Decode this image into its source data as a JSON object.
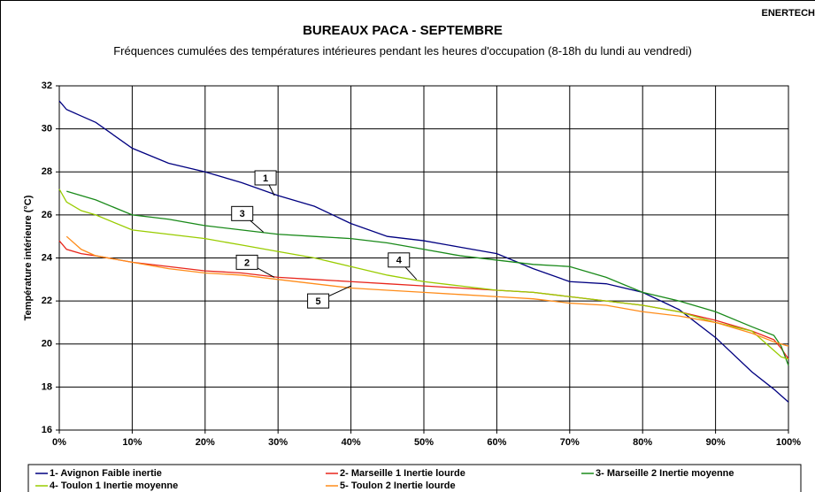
{
  "chart_data": {
    "type": "line",
    "corner_text": "ENERTECH",
    "title": "BUREAUX PACA - SEPTEMBRE",
    "subtitle": "Fréquences cumulées des températures intérieures  pendant les heures d'occupation (8-18h du lundi au vendredi)",
    "y_label": "Température intérieure (°C)",
    "x": [
      0,
      1,
      3,
      5,
      10,
      15,
      20,
      25,
      30,
      35,
      40,
      45,
      50,
      55,
      60,
      65,
      70,
      75,
      80,
      85,
      90,
      95,
      98,
      99,
      100
    ],
    "series": [
      {
        "name": "1- Avignon Faible inertie",
        "color": "#000080",
        "values": [
          31.3,
          30.9,
          30.6,
          30.3,
          29.1,
          28.4,
          28.0,
          27.5,
          26.9,
          26.4,
          25.6,
          25.0,
          24.8,
          24.5,
          24.2,
          23.5,
          22.9,
          22.8,
          22.4,
          21.6,
          20.3,
          18.7,
          17.9,
          17.6,
          17.3
        ]
      },
      {
        "name": "2- Marseille 1 Inertie lourde",
        "color": "#e8261c",
        "values": [
          24.8,
          24.4,
          24.2,
          24.1,
          23.8,
          23.6,
          23.4,
          23.3,
          23.1,
          23.0,
          22.9,
          22.8,
          22.7,
          22.6,
          22.5,
          22.4,
          22.2,
          22.0,
          21.8,
          21.5,
          21.1,
          20.6,
          20.2,
          19.8,
          19.3
        ]
      },
      {
        "name": "3- Marseille 2 Inertie moyenne",
        "color": "#1a8a1a",
        "values": [
          null,
          27.1,
          26.9,
          26.7,
          26.0,
          25.8,
          25.5,
          25.3,
          25.1,
          25.0,
          24.9,
          24.7,
          24.4,
          24.1,
          23.9,
          23.7,
          23.6,
          23.1,
          22.4,
          22.0,
          21.5,
          20.8,
          20.4,
          19.9,
          19.0
        ]
      },
      {
        "name": "4- Toulon 1 Inertie moyenne",
        "color": "#99cc00",
        "values": [
          27.2,
          26.6,
          26.2,
          26.0,
          25.3,
          25.1,
          24.9,
          24.6,
          24.3,
          24.0,
          23.6,
          23.2,
          22.9,
          22.7,
          22.5,
          22.4,
          22.2,
          22.0,
          21.8,
          21.5,
          21.0,
          20.6,
          19.7,
          19.4,
          19.3
        ]
      },
      {
        "name": "5- Toulon 2 Inertie lourde",
        "color": "#ff8c1a",
        "values": [
          null,
          25.0,
          24.4,
          24.1,
          23.8,
          23.5,
          23.3,
          23.2,
          23.0,
          22.8,
          22.6,
          22.5,
          22.4,
          22.3,
          22.2,
          22.1,
          21.9,
          21.8,
          21.5,
          21.3,
          21.0,
          20.5,
          20.1,
          20.0,
          19.9
        ]
      }
    ],
    "annotations": [
      {
        "text": "1",
        "x": 29.5,
        "y": 26.9
      },
      {
        "text": "2",
        "x": 29.5,
        "y": 23.1
      },
      {
        "text": "3",
        "x": 28,
        "y": 25.2
      },
      {
        "text": "4",
        "x": 49,
        "y": 23.0
      },
      {
        "text": "5",
        "x": 40,
        "y": 22.7
      }
    ],
    "xlim": [
      0,
      100
    ],
    "xticks": [
      {
        "value": 0,
        "label": "0%"
      },
      {
        "value": 10,
        "label": "10%"
      },
      {
        "value": 20,
        "label": "20%"
      },
      {
        "value": 30,
        "label": "30%"
      },
      {
        "value": 40,
        "label": "40%"
      },
      {
        "value": 50,
        "label": "50%"
      },
      {
        "value": 60,
        "label": "60%"
      },
      {
        "value": 70,
        "label": "70%"
      },
      {
        "value": 80,
        "label": "80%"
      },
      {
        "value": 90,
        "label": "90%"
      },
      {
        "value": 100,
        "label": "100%"
      }
    ],
    "ylim": [
      16,
      32
    ],
    "yticks": [
      16,
      18,
      20,
      22,
      24,
      26,
      28,
      30,
      32
    ],
    "grid": true,
    "legend": "bottom"
  }
}
